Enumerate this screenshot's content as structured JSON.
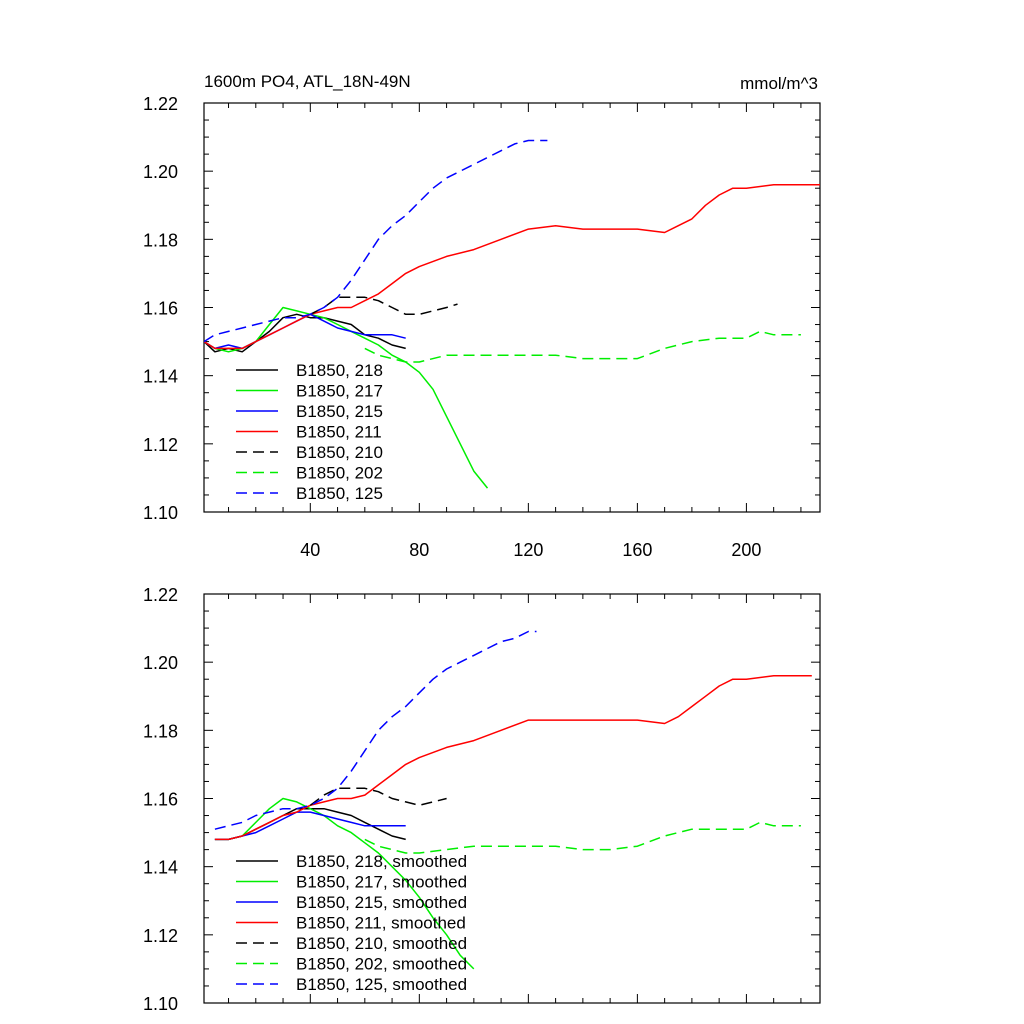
{
  "chart_data": [
    {
      "type": "line",
      "title": "1600m PO4, ATL_18N-49N",
      "units_label": "mmol/m^3",
      "xlim": [
        1,
        227
      ],
      "ylim": [
        1.1,
        1.22
      ],
      "xticks": [
        40,
        80,
        120,
        160,
        200
      ],
      "xtick_labels": [
        "40",
        "80",
        "120",
        "160",
        "200"
      ],
      "yticks": [
        1.1,
        1.12,
        1.14,
        1.16,
        1.18,
        1.2,
        1.22
      ],
      "ytick_labels": [
        "1.10",
        "1.12",
        "1.14",
        "1.16",
        "1.18",
        "1.20",
        "1.22"
      ],
      "legend_position": "bottom-left",
      "series": [
        {
          "name": "B1850, 218",
          "color": "#000000",
          "dash": "solid",
          "x": [
            1,
            5,
            10,
            15,
            20,
            25,
            30,
            35,
            40,
            45,
            50,
            55,
            60,
            65,
            70,
            75
          ],
          "y": [
            1.15,
            1.147,
            1.148,
            1.147,
            1.15,
            1.153,
            1.157,
            1.158,
            1.157,
            1.157,
            1.156,
            1.155,
            1.152,
            1.151,
            1.149,
            1.148
          ]
        },
        {
          "name": "B1850, 217",
          "color": "#00ee00",
          "dash": "solid",
          "x": [
            1,
            5,
            10,
            15,
            20,
            25,
            30,
            35,
            40,
            45,
            50,
            55,
            60,
            65,
            70,
            75,
            80,
            85,
            90,
            95,
            100,
            105
          ],
          "y": [
            1.15,
            1.148,
            1.147,
            1.148,
            1.15,
            1.155,
            1.16,
            1.159,
            1.158,
            1.157,
            1.155,
            1.153,
            1.151,
            1.149,
            1.146,
            1.144,
            1.141,
            1.136,
            1.128,
            1.12,
            1.112,
            1.107
          ]
        },
        {
          "name": "B1850, 215",
          "color": "#0000ff",
          "dash": "solid",
          "x": [
            1,
            5,
            10,
            15,
            20,
            25,
            30,
            35,
            40,
            45,
            50,
            55,
            60,
            65,
            70,
            75
          ],
          "y": [
            1.15,
            1.148,
            1.149,
            1.148,
            1.15,
            1.152,
            1.154,
            1.156,
            1.158,
            1.156,
            1.154,
            1.153,
            1.152,
            1.152,
            1.152,
            1.151
          ]
        },
        {
          "name": "B1850, 211",
          "color": "#ff0000",
          "dash": "solid",
          "x": [
            1,
            5,
            10,
            15,
            20,
            25,
            30,
            35,
            40,
            45,
            50,
            55,
            60,
            65,
            70,
            75,
            80,
            90,
            100,
            110,
            120,
            130,
            140,
            150,
            160,
            170,
            175,
            180,
            185,
            190,
            195,
            200,
            210,
            220,
            227
          ],
          "y": [
            1.15,
            1.148,
            1.148,
            1.148,
            1.15,
            1.152,
            1.154,
            1.156,
            1.158,
            1.159,
            1.16,
            1.16,
            1.162,
            1.164,
            1.167,
            1.17,
            1.172,
            1.175,
            1.177,
            1.18,
            1.183,
            1.184,
            1.183,
            1.183,
            1.183,
            1.182,
            1.184,
            1.186,
            1.19,
            1.193,
            1.195,
            1.195,
            1.196,
            1.196,
            1.196
          ]
        },
        {
          "name": "B1850, 210",
          "color": "#000000",
          "dash": "dashed",
          "x": [
            40,
            45,
            50,
            55,
            60,
            65,
            70,
            75,
            80,
            85,
            90,
            94
          ],
          "y": [
            1.158,
            1.16,
            1.163,
            1.163,
            1.163,
            1.162,
            1.16,
            1.158,
            1.158,
            1.159,
            1.16,
            1.161
          ]
        },
        {
          "name": "B1850, 202",
          "color": "#00ee00",
          "dash": "dashed",
          "x": [
            60,
            65,
            70,
            75,
            80,
            90,
            100,
            110,
            120,
            130,
            140,
            150,
            160,
            170,
            180,
            190,
            200,
            205,
            210,
            215,
            220
          ],
          "y": [
            1.148,
            1.146,
            1.145,
            1.144,
            1.144,
            1.146,
            1.146,
            1.146,
            1.146,
            1.146,
            1.145,
            1.145,
            1.145,
            1.148,
            1.15,
            1.151,
            1.151,
            1.153,
            1.152,
            1.152,
            1.152
          ]
        },
        {
          "name": "B1850, 125",
          "color": "#0000ff",
          "dash": "dashed",
          "x": [
            1,
            5,
            10,
            15,
            20,
            25,
            30,
            35,
            40,
            45,
            50,
            55,
            60,
            65,
            70,
            75,
            80,
            85,
            90,
            95,
            100,
            105,
            110,
            115,
            120,
            125,
            127
          ],
          "y": [
            1.15,
            1.152,
            1.153,
            1.154,
            1.155,
            1.156,
            1.157,
            1.157,
            1.158,
            1.16,
            1.163,
            1.168,
            1.174,
            1.18,
            1.184,
            1.187,
            1.191,
            1.195,
            1.198,
            1.2,
            1.202,
            1.204,
            1.206,
            1.208,
            1.209,
            1.209,
            1.209
          ]
        }
      ]
    },
    {
      "type": "line",
      "xlim": [
        1,
        227
      ],
      "ylim": [
        1.1,
        1.22
      ],
      "xticks": [
        40,
        80,
        120,
        160,
        200
      ],
      "yticks": [
        1.1,
        1.12,
        1.14,
        1.16,
        1.18,
        1.2,
        1.22
      ],
      "ytick_labels": [
        "1.10",
        "1.12",
        "1.14",
        "1.16",
        "1.18",
        "1.20",
        "1.22"
      ],
      "legend_position": "bottom-left",
      "series": [
        {
          "name": "B1850, 218, smoothed",
          "color": "#000000",
          "dash": "solid",
          "x": [
            5,
            10,
            15,
            20,
            25,
            30,
            35,
            40,
            45,
            50,
            55,
            60,
            65,
            70,
            75
          ],
          "y": [
            1.148,
            1.148,
            1.149,
            1.151,
            1.153,
            1.155,
            1.157,
            1.157,
            1.157,
            1.156,
            1.155,
            1.153,
            1.151,
            1.149,
            1.148
          ]
        },
        {
          "name": "B1850, 217, smoothed",
          "color": "#00ee00",
          "dash": "solid",
          "x": [
            5,
            10,
            15,
            20,
            25,
            30,
            35,
            40,
            45,
            50,
            55,
            60,
            65,
            70,
            75,
            80,
            85,
            90,
            95,
            100
          ],
          "y": [
            1.148,
            1.148,
            1.149,
            1.153,
            1.157,
            1.16,
            1.159,
            1.157,
            1.155,
            1.152,
            1.15,
            1.147,
            1.144,
            1.14,
            1.136,
            1.131,
            1.125,
            1.12,
            1.114,
            1.11
          ]
        },
        {
          "name": "B1850, 215, smoothed",
          "color": "#0000ff",
          "dash": "solid",
          "x": [
            5,
            10,
            15,
            20,
            25,
            30,
            35,
            40,
            45,
            50,
            55,
            60,
            65,
            70,
            75
          ],
          "y": [
            1.148,
            1.148,
            1.149,
            1.15,
            1.152,
            1.154,
            1.156,
            1.156,
            1.155,
            1.154,
            1.153,
            1.152,
            1.152,
            1.152,
            1.152
          ]
        },
        {
          "name": "B1850, 211, smoothed",
          "color": "#ff0000",
          "dash": "solid",
          "x": [
            5,
            10,
            15,
            20,
            25,
            30,
            35,
            40,
            45,
            50,
            55,
            60,
            65,
            70,
            75,
            80,
            90,
            100,
            110,
            120,
            130,
            140,
            150,
            160,
            170,
            175,
            180,
            185,
            190,
            195,
            200,
            210,
            220,
            224
          ],
          "y": [
            1.148,
            1.148,
            1.149,
            1.151,
            1.153,
            1.155,
            1.156,
            1.158,
            1.159,
            1.16,
            1.16,
            1.161,
            1.164,
            1.167,
            1.17,
            1.172,
            1.175,
            1.177,
            1.18,
            1.183,
            1.183,
            1.183,
            1.183,
            1.183,
            1.182,
            1.184,
            1.187,
            1.19,
            1.193,
            1.195,
            1.195,
            1.196,
            1.196,
            1.196
          ]
        },
        {
          "name": "B1850, 210, smoothed",
          "color": "#000000",
          "dash": "dashed",
          "x": [
            40,
            45,
            50,
            55,
            60,
            65,
            70,
            75,
            80,
            85,
            90
          ],
          "y": [
            1.158,
            1.161,
            1.163,
            1.163,
            1.163,
            1.162,
            1.16,
            1.159,
            1.158,
            1.159,
            1.16
          ]
        },
        {
          "name": "B1850, 202, smoothed",
          "color": "#00ee00",
          "dash": "dashed",
          "x": [
            60,
            65,
            70,
            75,
            80,
            90,
            100,
            110,
            120,
            130,
            140,
            150,
            160,
            170,
            180,
            190,
            200,
            205,
            210,
            215,
            220
          ],
          "y": [
            1.148,
            1.146,
            1.145,
            1.144,
            1.144,
            1.145,
            1.146,
            1.146,
            1.146,
            1.146,
            1.145,
            1.145,
            1.146,
            1.149,
            1.151,
            1.151,
            1.151,
            1.153,
            1.152,
            1.152,
            1.152
          ]
        },
        {
          "name": "B1850, 125, smoothed",
          "color": "#0000ff",
          "dash": "dashed",
          "x": [
            5,
            10,
            15,
            20,
            25,
            30,
            35,
            40,
            45,
            50,
            55,
            60,
            65,
            70,
            75,
            80,
            85,
            90,
            95,
            100,
            105,
            110,
            115,
            120,
            123
          ],
          "y": [
            1.151,
            1.152,
            1.153,
            1.155,
            1.156,
            1.157,
            1.157,
            1.158,
            1.16,
            1.163,
            1.168,
            1.174,
            1.18,
            1.184,
            1.187,
            1.191,
            1.195,
            1.198,
            1.2,
            1.202,
            1.204,
            1.206,
            1.207,
            1.209,
            1.209
          ]
        }
      ]
    }
  ]
}
